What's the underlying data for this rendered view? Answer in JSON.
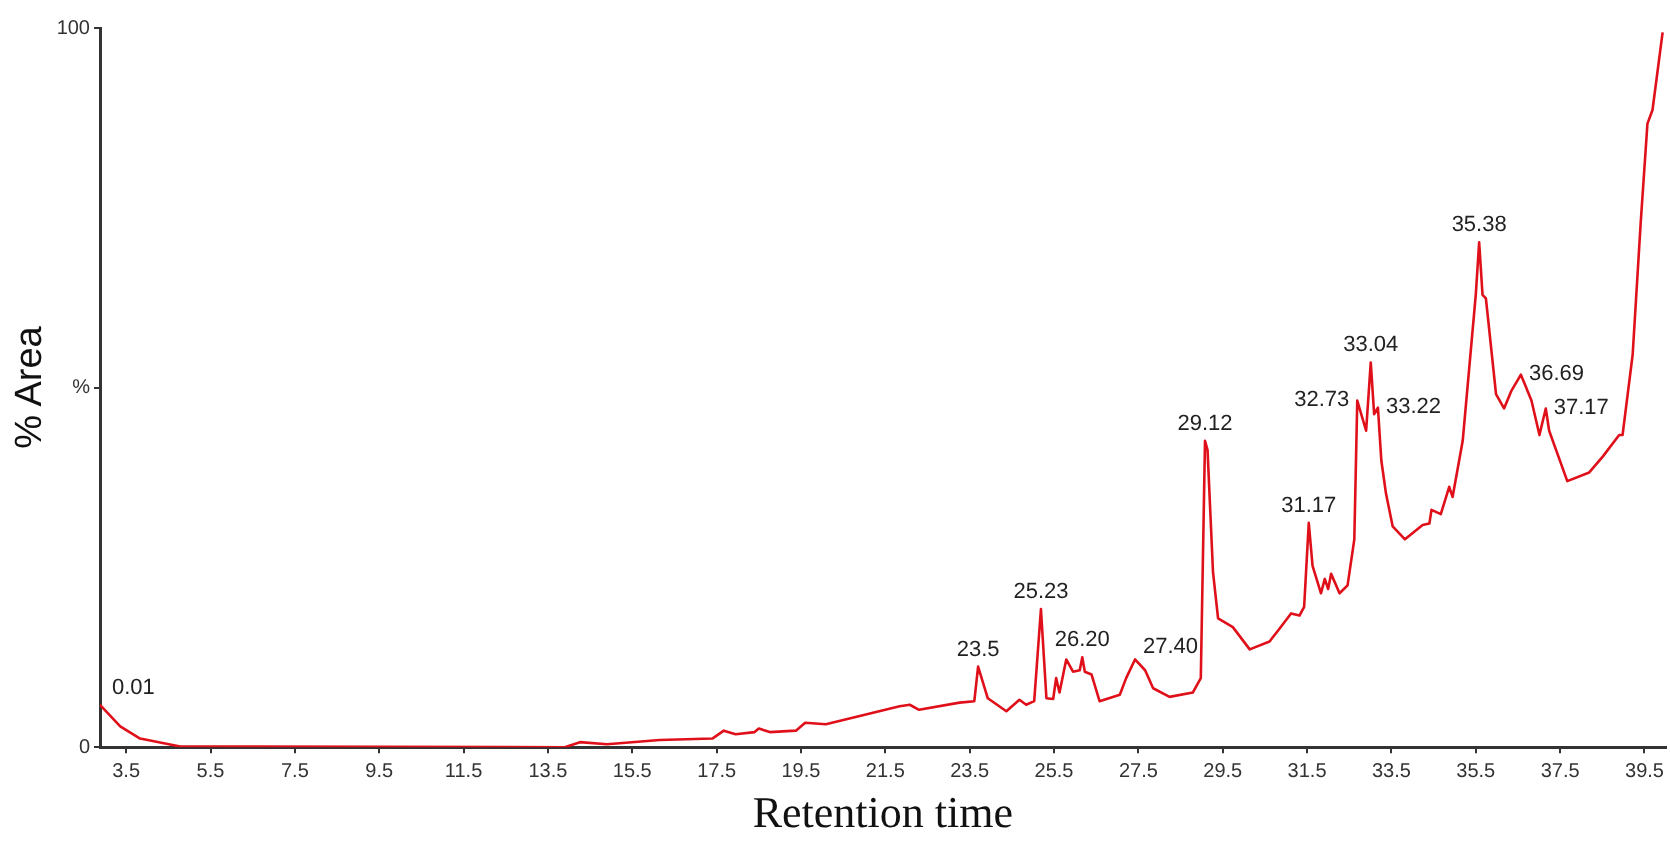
{
  "chart_data": {
    "type": "line",
    "xlabel": "Retention time",
    "ylabel": "% Area",
    "xlim": [
      2.88,
      40
    ],
    "ylim": [
      0,
      100
    ],
    "xticks": [
      3.5,
      5.5,
      7.5,
      9.5,
      11.5,
      13.5,
      15.5,
      17.5,
      19.5,
      21.5,
      23.5,
      25.5,
      27.5,
      29.5,
      31.5,
      33.5,
      35.5,
      37.5,
      39.5
    ],
    "yticks": [
      0,
      {
        "value": 50,
        "label": "%"
      },
      100
    ],
    "grid": false,
    "legend": false,
    "marker": "none",
    "line_style": "solid",
    "series": [
      {
        "color": "#e0101a",
        "x": [
          2.88,
          3.36,
          3.83,
          4.78,
          13.9,
          14.26,
          14.9,
          16.15,
          17.4,
          17.67,
          17.95,
          18.4,
          18.5,
          18.76,
          19.38,
          19.6,
          20.09,
          21.84,
          22.08,
          22.3,
          23.26,
          23.61,
          23.7,
          23.93,
          24.37,
          24.68,
          24.84,
          25.03,
          25.19,
          25.32,
          25.48,
          25.55,
          25.63,
          25.79,
          25.95,
          26.11,
          26.17,
          26.23,
          26.39,
          26.58,
          27.06,
          27.21,
          27.42,
          27.66,
          27.85,
          28.24,
          28.79,
          28.98,
          29.08,
          29.14,
          29.27,
          29.39,
          29.74,
          30.14,
          30.61,
          30.85,
          31.12,
          31.32,
          31.43,
          31.54,
          31.63,
          31.83,
          31.92,
          32.0,
          32.07,
          32.27,
          32.46,
          32.62,
          32.69,
          32.9,
          33.01,
          33.09,
          33.18,
          33.26,
          33.37,
          33.53,
          33.82,
          34.24,
          34.4,
          34.45,
          34.67,
          34.87,
          34.95,
          35.19,
          35.5,
          35.58,
          35.66,
          35.74,
          35.98,
          36.17,
          36.34,
          36.57,
          36.82,
          37.01,
          37.09,
          37.16,
          37.24,
          37.67,
          38.19,
          38.51,
          38.9,
          38.98,
          39.22,
          39.41,
          39.57,
          39.69,
          39.93
        ],
        "values": [
          5.9,
          2.9,
          1.2,
          0.1,
          0,
          0.7,
          0.4,
          1,
          1.2,
          2.3,
          1.8,
          2.1,
          2.6,
          2.1,
          2.3,
          3.4,
          3.2,
          5.7,
          5.9,
          5.2,
          6.2,
          6.4,
          11.2,
          6.8,
          5.0,
          6.6,
          5.9,
          6.4,
          19.2,
          6.8,
          6.7,
          9.6,
          7.6,
          12.2,
          10.5,
          10.7,
          12.5,
          10.5,
          10.1,
          6.4,
          7.3,
          9.6,
          12.2,
          10.7,
          8.2,
          7.0,
          7.6,
          9.6,
          42.6,
          41.3,
          24.3,
          17.9,
          16.7,
          13.6,
          14.7,
          16.5,
          18.6,
          18.3,
          19.5,
          31.2,
          25.2,
          21.4,
          23.4,
          22.0,
          24.1,
          21.4,
          22.5,
          28.9,
          48.2,
          44.0,
          53.5,
          46.3,
          47.2,
          39.9,
          35.3,
          30.7,
          28.9,
          30.9,
          31.1,
          33.0,
          32.4,
          36.2,
          34.8,
          42.6,
          62.9,
          70.2,
          62.9,
          62.4,
          49.1,
          47.1,
          49.5,
          51.8,
          48.2,
          43.4,
          45.4,
          47.1,
          44.0,
          37.0,
          38.2,
          40.4,
          43.4,
          43.4,
          54.6,
          72.9,
          86.7,
          88.6,
          99.4
        ]
      }
    ],
    "annotations": [
      {
        "text": "0.01",
        "x": 2.88,
        "y": 5.9
      },
      {
        "text": "23.5",
        "x": 23.7,
        "y": 11.2
      },
      {
        "text": "25.23",
        "x": 25.19,
        "y": 19.2
      },
      {
        "text": "26.20",
        "x": 26.17,
        "y": 12.5
      },
      {
        "text": "27.40",
        "x": 27.42,
        "y": 12.2
      },
      {
        "text": "29.12",
        "x": 29.08,
        "y": 42.6
      },
      {
        "text": "31.17",
        "x": 31.54,
        "y": 31.2
      },
      {
        "text": "32.73",
        "x": 32.69,
        "y": 48.2
      },
      {
        "text": "33.04",
        "x": 33.01,
        "y": 53.5
      },
      {
        "text": "33.22",
        "x": 33.18,
        "y": 47.2
      },
      {
        "text": "35.38",
        "x": 35.58,
        "y": 70.2
      },
      {
        "text": "36.69",
        "x": 36.57,
        "y": 51.8
      },
      {
        "text": "37.17",
        "x": 37.16,
        "y": 47.1
      }
    ]
  }
}
